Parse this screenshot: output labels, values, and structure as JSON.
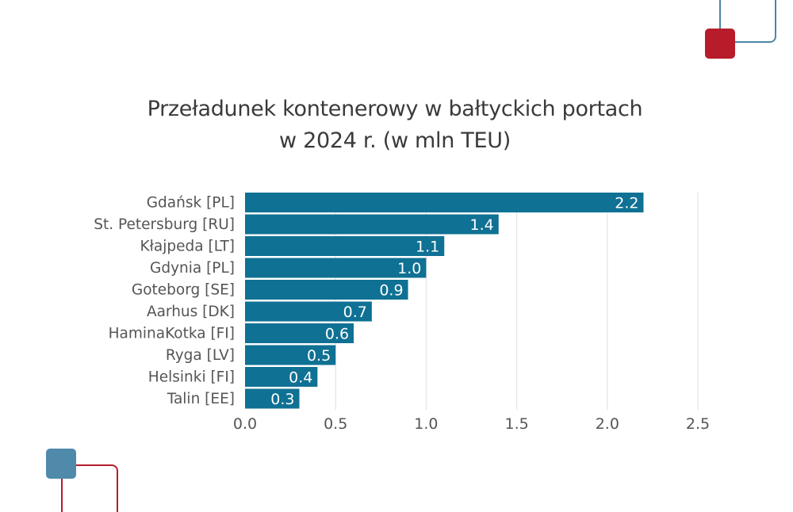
{
  "chart_data": {
    "type": "bar",
    "orientation": "horizontal",
    "title_lines": [
      "Przeładunek kontenerowy w bałtyckich portach",
      "w 2024 r. (w mln TEU)"
    ],
    "categories": [
      "Gdańsk [PL]",
      "St. Petersburg [RU]",
      "Kłajpeda [LT]",
      "Gdynia [PL]",
      "Goteborg [SE]",
      "Aarhus [DK]",
      "HaminaKotka [FI]",
      "Ryga [LV]",
      "Helsinki [FI]",
      "Talin [EE]"
    ],
    "values": [
      2.2,
      1.4,
      1.1,
      1.0,
      0.9,
      0.7,
      0.6,
      0.5,
      0.4,
      0.3
    ],
    "value_labels": [
      "2.2",
      "1.4",
      "1.1",
      "1.0",
      "0.9",
      "0.7",
      "0.6",
      "0.5",
      "0.4",
      "0.3"
    ],
    "x_ticks": [
      0.0,
      0.5,
      1.0,
      1.5,
      2.0,
      2.5
    ],
    "x_tick_labels": [
      "0.0",
      "0.5",
      "1.0",
      "1.5",
      "2.0",
      "2.5"
    ],
    "xlim": [
      0,
      2.5
    ],
    "grid": true,
    "legend": "none",
    "bar_color": "#0f7193",
    "grid_color": "#e3e3e3",
    "label_color": "#555555",
    "value_label_color": "#ffffff"
  }
}
